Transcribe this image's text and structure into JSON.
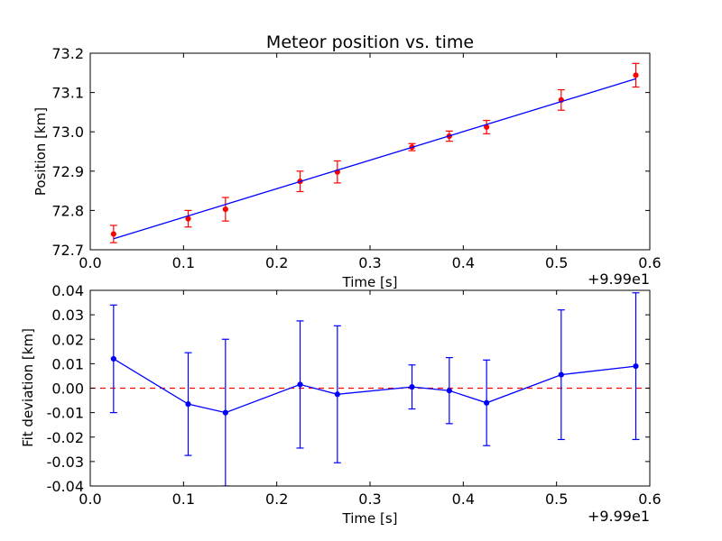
{
  "chart_data": [
    {
      "type": "scatter",
      "title": "Meteor position vs. time",
      "xlabel": "Time [s]",
      "ylabel": "Position [km]",
      "x_offset_label": "+9.99e1",
      "xlim": [
        0.0,
        0.6
      ],
      "ylim": [
        72.7,
        73.2
      ],
      "x_ticks": [
        "0.0",
        "0.1",
        "0.2",
        "0.3",
        "0.4",
        "0.5",
        "0.6"
      ],
      "y_ticks": [
        "72.7",
        "72.8",
        "72.9",
        "73.0",
        "73.1",
        "73.2"
      ],
      "grid": false,
      "series": [
        {
          "kind": "errorbar-points",
          "color": "#ff0000",
          "x": [
            0.025,
            0.105,
            0.145,
            0.225,
            0.265,
            0.345,
            0.385,
            0.425,
            0.505,
            0.585
          ],
          "y": [
            72.74,
            72.779,
            72.803,
            72.874,
            72.898,
            72.961,
            72.989,
            73.012,
            73.081,
            73.144
          ],
          "yerr": [
            0.022,
            0.021,
            0.03,
            0.026,
            0.028,
            0.009,
            0.013,
            0.017,
            0.026,
            0.03
          ]
        },
        {
          "kind": "fit-line",
          "color": "#0000ff",
          "x": [
            0.025,
            0.585
          ],
          "y": [
            72.728,
            73.135
          ]
        }
      ]
    },
    {
      "type": "line",
      "title": "",
      "xlabel": "Time [s]",
      "ylabel": "Fit deviation [km]",
      "x_offset_label": "+9.99e1",
      "xlim": [
        0.0,
        0.6
      ],
      "ylim": [
        -0.04,
        0.04
      ],
      "x_ticks": [
        "0.0",
        "0.1",
        "0.2",
        "0.3",
        "0.4",
        "0.5",
        "0.6"
      ],
      "y_ticks": [
        "-0.04",
        "-0.03",
        "-0.02",
        "-0.01",
        "0.00",
        "0.01",
        "0.02",
        "0.03",
        "0.04"
      ],
      "grid": false,
      "zero_line": {
        "y": 0.0,
        "color": "#ff0000",
        "style": "dashed"
      },
      "series": [
        {
          "kind": "errorbar-line",
          "color": "#0000ff",
          "x": [
            0.025,
            0.105,
            0.145,
            0.225,
            0.265,
            0.345,
            0.385,
            0.425,
            0.505,
            0.585
          ],
          "y": [
            0.012,
            -0.0065,
            -0.01,
            0.0015,
            -0.0025,
            0.0005,
            -0.001,
            -0.006,
            0.0055,
            0.009
          ],
          "yerr": [
            0.022,
            0.021,
            0.03,
            0.026,
            0.028,
            0.009,
            0.0135,
            0.0175,
            0.0265,
            0.03
          ]
        }
      ]
    }
  ]
}
